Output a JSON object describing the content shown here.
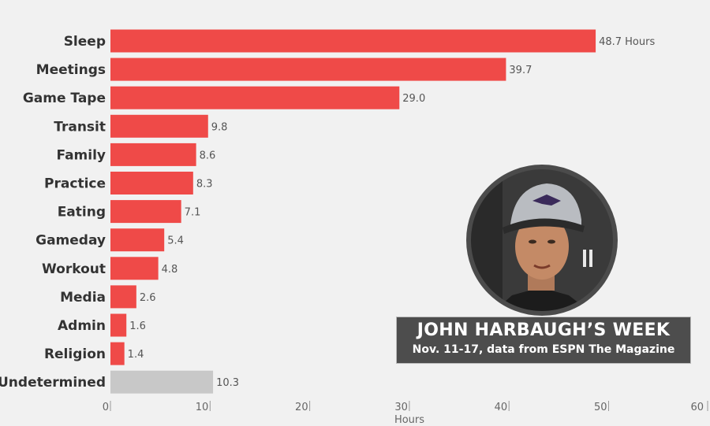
{
  "colors": {
    "bar": "#ef4a48",
    "bar_undetermined": "#c8c8c8",
    "background": "#f1f1f1",
    "caption_bg": "#4d4d4d"
  },
  "caption": {
    "title": "JOHN HARBAUGH’S WEEK",
    "subtitle": "Nov. 11-17, data from ESPN The Magazine"
  },
  "photo": {
    "depicts": "portrait-photo",
    "cap_icon": "raven-logo-icon"
  },
  "chart_data": {
    "type": "bar",
    "orientation": "horizontal",
    "categories": [
      "Sleep",
      "Meetings",
      "Game Tape",
      "Transit",
      "Family",
      "Practice",
      "Eating",
      "Gameday",
      "Workout",
      "Media",
      "Admin",
      "Religion",
      "Undetermined"
    ],
    "values": [
      48.7,
      39.7,
      29.0,
      9.8,
      8.6,
      8.3,
      7.1,
      5.4,
      4.8,
      2.6,
      1.6,
      1.4,
      10.3
    ],
    "value_labels": [
      "48.7 Hours",
      "39.7",
      "29.0",
      "9.8",
      "8.6",
      "8.3",
      "7.1",
      "5.4",
      "4.8",
      "2.6",
      "1.6",
      "1.4",
      "10.3"
    ],
    "highlight": "Undetermined",
    "xlabel": "Hours",
    "xlim": [
      0,
      60
    ],
    "xticks": [
      0,
      10,
      20,
      30,
      40,
      50,
      60
    ],
    "grid": false,
    "legend": "none"
  }
}
